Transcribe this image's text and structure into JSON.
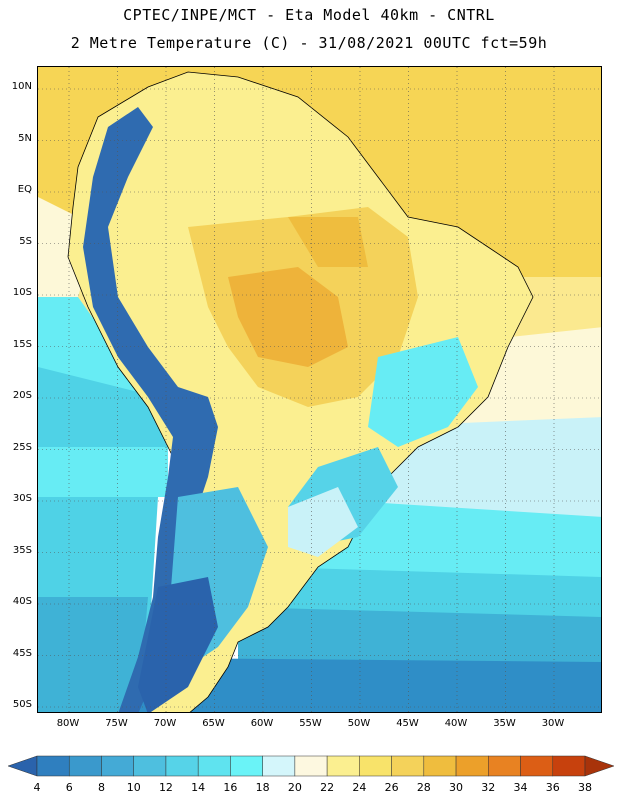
{
  "header": {
    "title_line1": "CPTEC/INPE/MCT -  Eta Model 40km - CNTRL",
    "title_line2": "2 Metre Temperature (C) - 31/08/2021 00UTC fct=59h"
  },
  "map": {
    "lat_labels": [
      "10N",
      "5N",
      "EQ",
      "5S",
      "10S",
      "15S",
      "20S",
      "25S",
      "30S",
      "35S",
      "40S",
      "45S",
      "50S"
    ],
    "lon_labels": [
      "80W",
      "75W",
      "70W",
      "65W",
      "60W",
      "55W",
      "50W",
      "45W",
      "40W",
      "35W",
      "30W"
    ],
    "colors": {
      "ocean_north": "#f6d555",
      "ocean_mid": "#fdf8d8",
      "ocean_warm": "#fbe98f",
      "ocean_south1": "#c9f2f8",
      "ocean_south2": "#67ecf4",
      "ocean_south3": "#4fd2e6",
      "ocean_south4": "#3fb2d6",
      "ocean_south5": "#2f8ec7",
      "ocean_deep": "#2c6fb4",
      "land_warm": "#f3c545",
      "land_hot": "#eeb33a",
      "andes": "#2f6bb0",
      "grid": "#555555",
      "border": "#000000"
    }
  },
  "colorbar": {
    "labels": [
      "4",
      "6",
      "8",
      "10",
      "12",
      "14",
      "16",
      "18",
      "20",
      "22",
      "24",
      "26",
      "28",
      "30",
      "32",
      "34",
      "36",
      "38"
    ],
    "colors": [
      "#2a63ac",
      "#2f7fbf",
      "#3a99cc",
      "#44aad6",
      "#4ebfdf",
      "#56d3e8",
      "#5fe3ef",
      "#6af3f7",
      "#d4f6fb",
      "#fdf8e0",
      "#fbef90",
      "#f8e36a",
      "#f4d25a",
      "#efbd3e",
      "#eca02a",
      "#e88222",
      "#dc5e15",
      "#c7410d",
      "#a8330a"
    ]
  }
}
